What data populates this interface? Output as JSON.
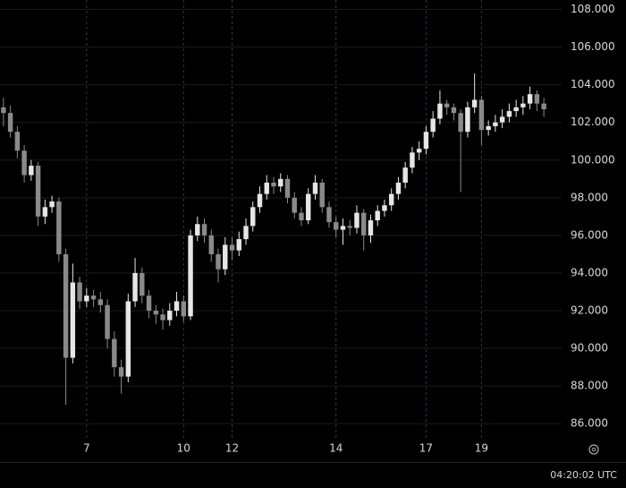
{
  "chart_data": {
    "type": "candlestick",
    "open": [
      102.8,
      102.5,
      101.5,
      100.5,
      99.2,
      99.7,
      97,
      97.5,
      97.8,
      95,
      89.5,
      93.5,
      92.5,
      92.8,
      92.6,
      92.3,
      90.5,
      89,
      88.5,
      92.5,
      94,
      92.8,
      92,
      91.8,
      91.5,
      92,
      92.5,
      91.7,
      96,
      96.6,
      96,
      95,
      94.2,
      95.5,
      95.2,
      95.8,
      96.5,
      97.5,
      98.2,
      98.8,
      98.6,
      99,
      98,
      97.2,
      96.8,
      98.2,
      98.8,
      97.5,
      96.7,
      96.3,
      96.5,
      96.4,
      97.2,
      96,
      96.8,
      97.3,
      97.6,
      98.2,
      98.8,
      99.6,
      100.4,
      100.6,
      101.5,
      102.2,
      103,
      102.8,
      102.5,
      101.5,
      102.8,
      103.2,
      101.6,
      101.8,
      102,
      102.3,
      102.6,
      102.8,
      103,
      103.5,
      103
    ],
    "high": [
      103.3,
      102.9,
      101.8,
      100.8,
      100.0,
      99.9,
      97.9,
      98.1,
      98.0,
      95.3,
      94.5,
      93.8,
      93.2,
      93.1,
      93.0,
      92.6,
      90.9,
      89.4,
      92.9,
      94.8,
      94.3,
      93.1,
      92.3,
      92.1,
      92.4,
      93.0,
      92.8,
      96.3,
      97.0,
      96.9,
      96.3,
      95.3,
      95.9,
      95.9,
      96.2,
      96.9,
      97.8,
      98.6,
      99.2,
      99.1,
      99.3,
      99.2,
      98.3,
      97.5,
      98.5,
      99.2,
      99.0,
      97.8,
      97.0,
      96.9,
      96.8,
      97.6,
      97.4,
      97.1,
      97.6,
      97.9,
      98.5,
      99.1,
      99.9,
      100.7,
      101.0,
      101.8,
      102.6,
      103.7,
      103.2,
      103.0,
      102.7,
      103.1,
      104.6,
      103.4,
      102.1,
      102.4,
      102.7,
      103.0,
      103.2,
      103.4,
      103.9,
      103.7,
      103.3
    ],
    "low": [
      101.8,
      101.2,
      100.1,
      98.8,
      98.9,
      96.5,
      96.6,
      97.2,
      94.6,
      87,
      89.2,
      92.1,
      92.2,
      92.2,
      91.9,
      90.0,
      88.5,
      87.6,
      88.2,
      92.2,
      92.4,
      91.6,
      91.3,
      91.0,
      91.2,
      91.7,
      91.4,
      91.5,
      95.7,
      95.6,
      94.6,
      93.5,
      93.9,
      94.7,
      94.9,
      95.5,
      96.2,
      97.2,
      97.9,
      98.2,
      98.3,
      97.7,
      96.9,
      96.5,
      96.6,
      97.9,
      97.2,
      96.4,
      95.9,
      95.5,
      96.0,
      96.1,
      95.2,
      95.6,
      96.5,
      97.0,
      97.3,
      97.9,
      98.5,
      99.3,
      100.0,
      100.3,
      101.2,
      101.9,
      102.4,
      102.1,
      98.3,
      101.2,
      102.5,
      100.8,
      101.3,
      101.5,
      101.7,
      102.0,
      102.3,
      102.4,
      102.7,
      102.6,
      102.3
    ],
    "close": [
      102.5,
      101.5,
      100.5,
      99.2,
      99.7,
      97,
      97.5,
      97.8,
      95,
      89.5,
      93.5,
      92.5,
      92.8,
      92.6,
      92.3,
      90.5,
      89,
      88.5,
      92.5,
      94,
      92.8,
      92,
      91.8,
      91.5,
      92,
      92.5,
      91.7,
      96,
      96.6,
      96,
      95,
      94.2,
      95.5,
      95.2,
      95.8,
      96.5,
      97.5,
      98.2,
      98.8,
      98.6,
      99,
      98,
      97.2,
      96.8,
      98.2,
      98.8,
      97.5,
      96.7,
      96.3,
      96.5,
      96.4,
      97.2,
      96,
      96.8,
      97.3,
      97.6,
      98.2,
      98.8,
      99.6,
      100.4,
      100.6,
      101.5,
      102.2,
      103,
      102.8,
      102.5,
      101.5,
      102.8,
      103.2,
      101.6,
      101.8,
      102,
      102.3,
      102.6,
      102.8,
      103,
      103.5,
      103,
      102.7
    ],
    "up_color": "#e6e6e6",
    "down_color": "#8a8a8a",
    "ylim": [
      85.2,
      108.5
    ],
    "yticks": [
      {
        "value": 86,
        "label": "86.000"
      },
      {
        "value": 88,
        "label": "88.000"
      },
      {
        "value": 90,
        "label": "90.000"
      },
      {
        "value": 92,
        "label": "92.000"
      },
      {
        "value": 94,
        "label": "94.000"
      },
      {
        "value": 96,
        "label": "96.000"
      },
      {
        "value": 98,
        "label": "98.000"
      },
      {
        "value": 100,
        "label": "100.000"
      },
      {
        "value": 102,
        "label": "102.000"
      },
      {
        "value": 104,
        "label": "104.000"
      },
      {
        "value": 106,
        "label": "106.000"
      },
      {
        "value": 108,
        "label": "108.000"
      }
    ],
    "xticks": [
      {
        "value": 12,
        "label": "7"
      },
      {
        "value": 26,
        "label": "10"
      },
      {
        "value": 33,
        "label": "12"
      },
      {
        "value": 48,
        "label": "14"
      },
      {
        "value": 61,
        "label": "17"
      },
      {
        "value": 69,
        "label": "19"
      }
    ],
    "grid": true,
    "clock": "04:20:02 UTC"
  }
}
